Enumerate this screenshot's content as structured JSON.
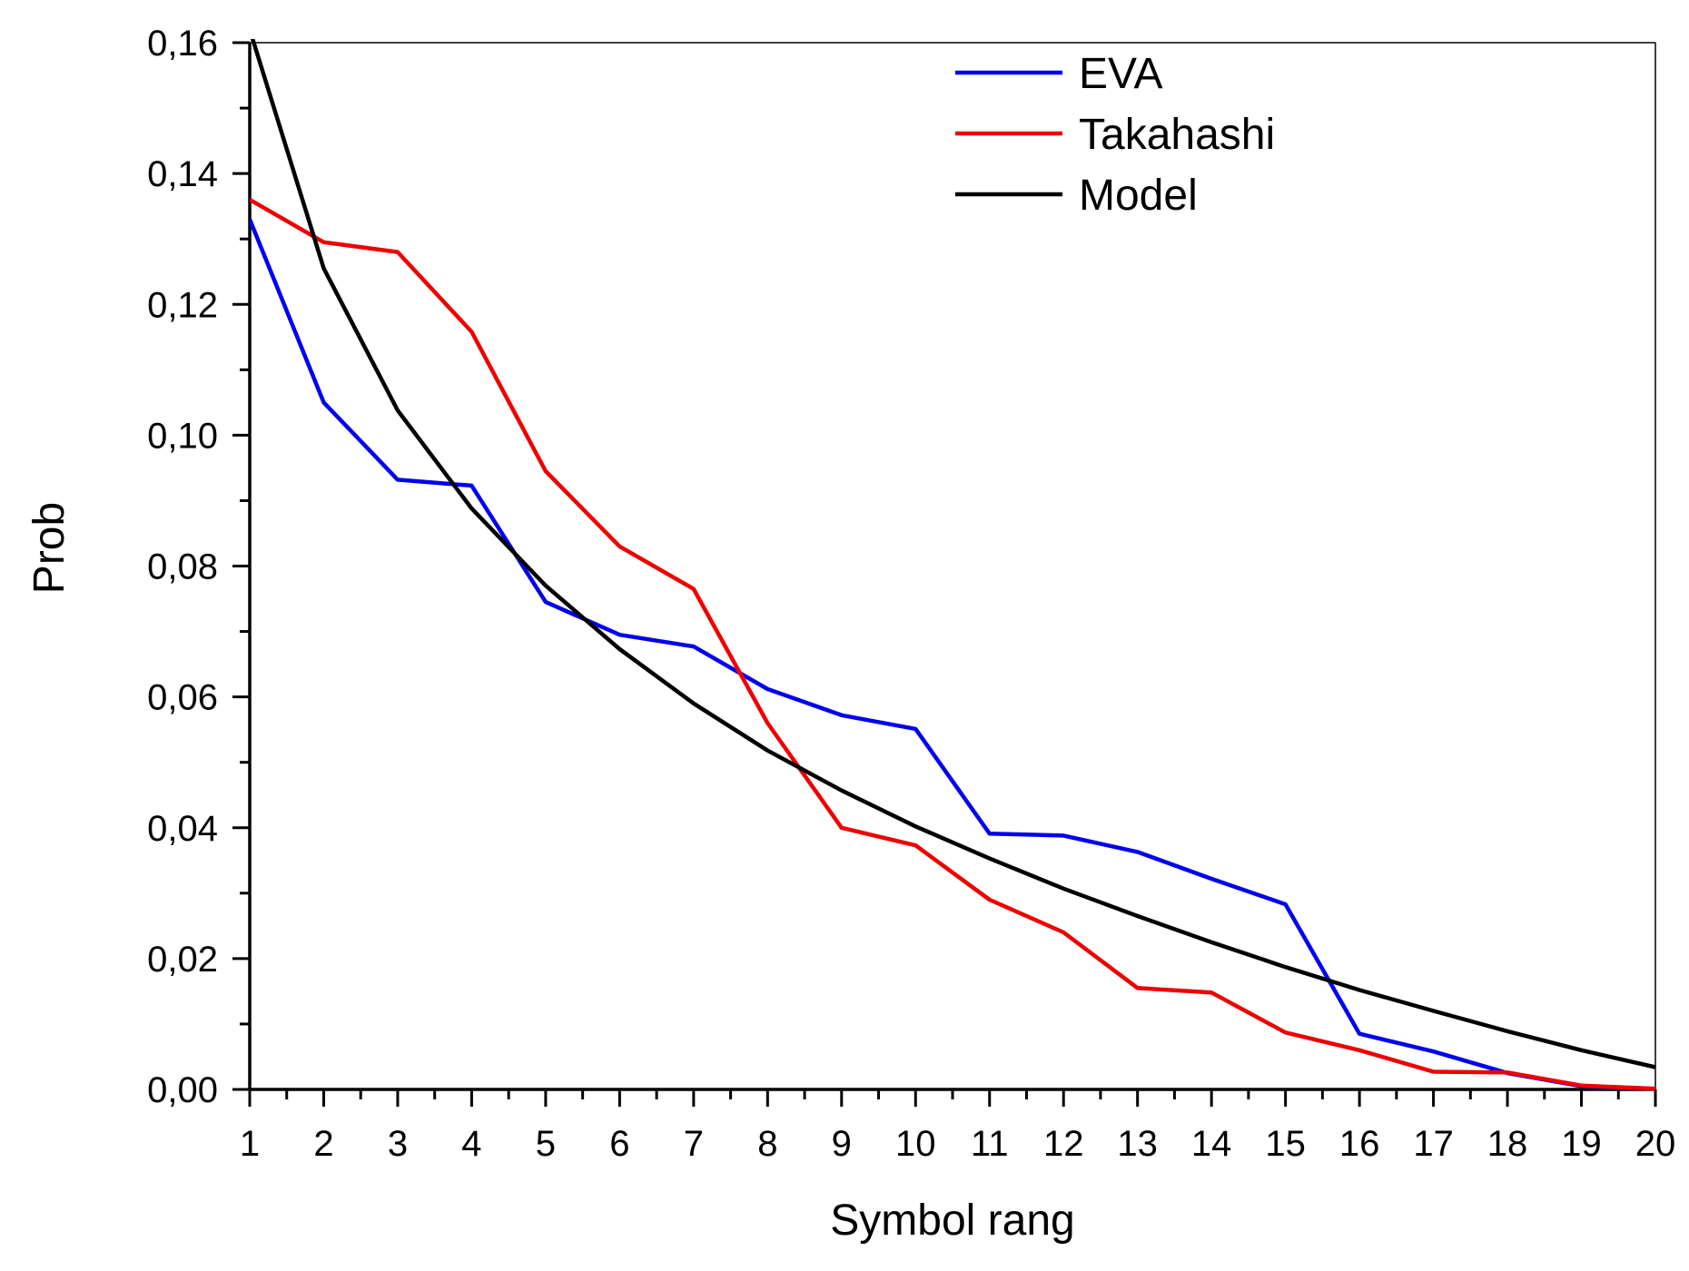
{
  "chart_data": {
    "type": "line",
    "title": "",
    "xlabel": "Symbol rang",
    "ylabel": "Prob",
    "xlim": [
      1,
      20
    ],
    "ylim": [
      0,
      0.16
    ],
    "x": [
      1,
      2,
      3,
      4,
      5,
      6,
      7,
      8,
      9,
      10,
      11,
      12,
      13,
      14,
      15,
      16,
      17,
      18,
      19,
      20
    ],
    "x_tick_labels": [
      "1",
      "2",
      "3",
      "4",
      "5",
      "6",
      "7",
      "8",
      "9",
      "10",
      "11",
      "12",
      "13",
      "14",
      "15",
      "16",
      "17",
      "18",
      "19",
      "20"
    ],
    "y_ticks": [
      0,
      0.02,
      0.04,
      0.06,
      0.08,
      0.1,
      0.12,
      0.14,
      0.16
    ],
    "y_tick_labels": [
      "0,00",
      "0,02",
      "0,04",
      "0,06",
      "0,08",
      "0,10",
      "0,12",
      "0,14",
      "0,16"
    ],
    "grid": false,
    "legend_position": "top-right",
    "series": [
      {
        "name": "EVA",
        "color": "#0000ee",
        "values": [
          0.133,
          0.105,
          0.0932,
          0.0923,
          0.0745,
          0.0695,
          0.0677,
          0.0612,
          0.0572,
          0.0551,
          0.0391,
          0.0388,
          0.0363,
          0.0322,
          0.0283,
          0.0085,
          0.0058,
          0.0025,
          0.0005,
          0.0001
        ]
      },
      {
        "name": "Takahashi",
        "color": "#ee0000",
        "values": [
          0.136,
          0.1295,
          0.128,
          0.1158,
          0.0945,
          0.083,
          0.0765,
          0.056,
          0.04,
          0.0373,
          0.029,
          0.024,
          0.0155,
          0.0148,
          0.0087,
          0.006,
          0.0027,
          0.0026,
          0.0006,
          0.0001
        ]
      },
      {
        "name": "Model",
        "color": "#000000",
        "values": [
          0.162,
          0.1255,
          0.1038,
          0.0888,
          0.077,
          0.0673,
          0.059,
          0.0518,
          0.0457,
          0.0402,
          0.0353,
          0.0307,
          0.0265,
          0.0225,
          0.0187,
          0.0152,
          0.012,
          0.0089,
          0.006,
          0.0034
        ]
      }
    ]
  }
}
